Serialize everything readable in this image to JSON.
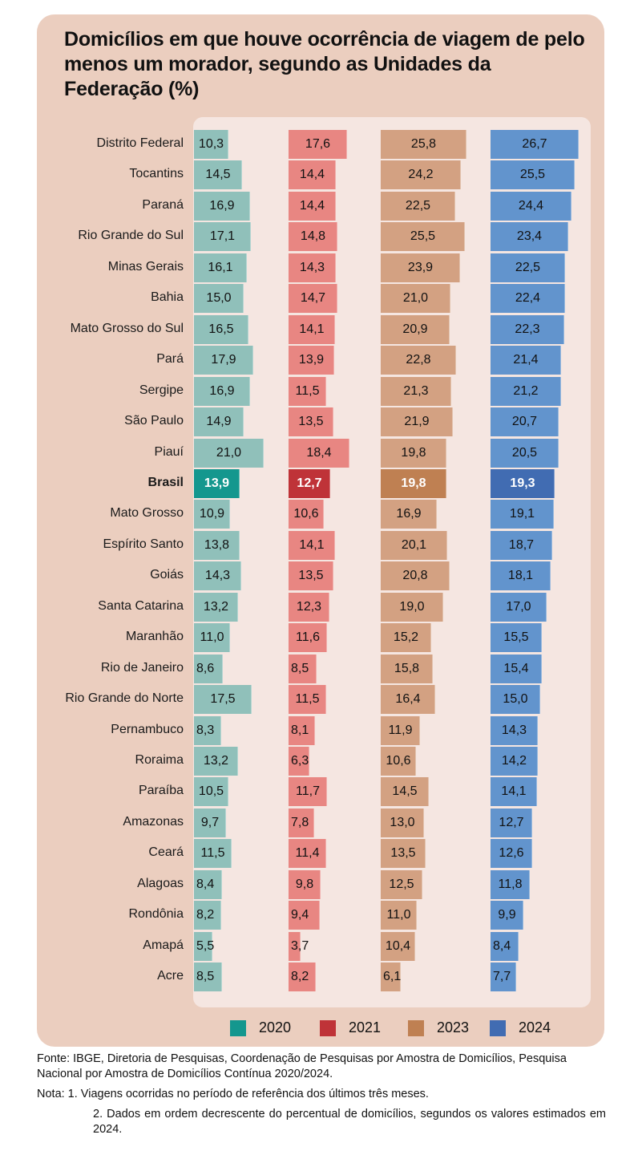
{
  "chart_data": {
    "type": "bar",
    "orientation": "horizontal",
    "title": "Domicílios em que houve ocorrência de viagem de pelo menos um morador, segundo as Unidades da Federação (%)",
    "xlabel": "",
    "ylabel": "",
    "unit": "%",
    "grid": false,
    "legend_position": "bottom",
    "categories": [
      "Distrito Federal",
      "Tocantins",
      "Paraná",
      "Rio Grande do Sul",
      "Minas Gerais",
      "Bahia",
      "Mato Grosso do Sul",
      "Pará",
      "Sergipe",
      "São Paulo",
      "Piauí",
      "Brasil",
      "Mato Grosso",
      "Espírito Santo",
      "Goiás",
      "Santa Catarina",
      "Maranhão",
      "Rio de Janeiro",
      "Rio Grande do Norte",
      "Pernambuco",
      "Roraima",
      "Paraíba",
      "Amazonas",
      "Ceará",
      "Alagoas",
      "Rondônia",
      "Amapá",
      "Acre"
    ],
    "highlight_category": "Brasil",
    "series": [
      {
        "name": "2020",
        "color": "#90c0ba",
        "highlight_color": "#14978e",
        "values": [
          10.3,
          14.5,
          16.9,
          17.1,
          16.1,
          15.0,
          16.5,
          17.9,
          16.9,
          14.9,
          21.0,
          13.9,
          10.9,
          13.8,
          14.3,
          13.2,
          11.0,
          8.6,
          17.5,
          8.3,
          13.2,
          10.5,
          9.7,
          11.5,
          8.4,
          8.2,
          5.5,
          8.5
        ],
        "labels": [
          "10,3",
          "14,5",
          "16,9",
          "17,1",
          "16,1",
          "15,0",
          "16,5",
          "17,9",
          "16,9",
          "14,9",
          "21,0",
          "13,9",
          "10,9",
          "13,8",
          "14,3",
          "13,2",
          "11,0",
          "8,6",
          "17,5",
          "8,3",
          "13,2",
          "10,5",
          "9,7",
          "11,5",
          "8,4",
          "8,2",
          "5,5",
          "8,5"
        ]
      },
      {
        "name": "2021",
        "color": "#e88682",
        "highlight_color": "#bf3338",
        "values": [
          17.6,
          14.4,
          14.4,
          14.8,
          14.3,
          14.7,
          14.1,
          13.9,
          11.5,
          13.5,
          18.4,
          12.7,
          10.6,
          14.1,
          13.5,
          12.3,
          11.6,
          8.5,
          11.5,
          8.1,
          6.3,
          11.7,
          7.8,
          11.4,
          9.8,
          9.4,
          3.7,
          8.2
        ],
        "labels": [
          "17,6",
          "14,4",
          "14,4",
          "14,8",
          "14,3",
          "14,7",
          "14,1",
          "13,9",
          "11,5",
          "13,5",
          "18,4",
          "12,7",
          "10,6",
          "14,1",
          "13,5",
          "12,3",
          "11,6",
          "8,5",
          "11,5",
          "8,1",
          "6,3",
          "11,7",
          "7,8",
          "11,4",
          "9,8",
          "9,4",
          "3,7",
          "8,2"
        ]
      },
      {
        "name": "2023",
        "color": "#d3a182",
        "highlight_color": "#bf8052",
        "values": [
          25.8,
          24.2,
          22.5,
          25.5,
          23.9,
          21.0,
          20.9,
          22.8,
          21.3,
          21.9,
          19.8,
          19.8,
          16.9,
          20.1,
          20.8,
          19.0,
          15.2,
          15.8,
          16.4,
          11.9,
          10.6,
          14.5,
          13.0,
          13.5,
          12.5,
          11.0,
          10.4,
          6.1
        ],
        "labels": [
          "25,8",
          "24,2",
          "22,5",
          "25,5",
          "23,9",
          "21,0",
          "20,9",
          "22,8",
          "21,3",
          "21,9",
          "19,8",
          "19,8",
          "16,9",
          "20,1",
          "20,8",
          "19,0",
          "15,2",
          "15,8",
          "16,4",
          "11,9",
          "10,6",
          "14,5",
          "13,0",
          "13,5",
          "12,5",
          "11,0",
          "10,4",
          "6,1"
        ]
      },
      {
        "name": "2024",
        "color": "#6294cd",
        "highlight_color": "#416cb2",
        "values": [
          26.7,
          25.5,
          24.4,
          23.4,
          22.5,
          22.4,
          22.3,
          21.4,
          21.2,
          20.7,
          20.5,
          19.3,
          19.1,
          18.7,
          18.1,
          17.0,
          15.5,
          15.4,
          15.0,
          14.3,
          14.2,
          14.1,
          12.7,
          12.6,
          11.8,
          9.9,
          8.4,
          7.7
        ],
        "labels": [
          "26,7",
          "25,5",
          "24,4",
          "23,4",
          "22,5",
          "22,4",
          "22,3",
          "21,4",
          "21,2",
          "20,7",
          "20,5",
          "19,3",
          "19,1",
          "18,7",
          "18,1",
          "17,0",
          "15,5",
          "15,4",
          "15,0",
          "14,3",
          "14,2",
          "14,1",
          "12,7",
          "12,6",
          "11,8",
          "9,9",
          "8,4",
          "7,7"
        ]
      }
    ]
  },
  "title": "Domicílios em que houve ocorrência de viagem de pelo menos um morador, segundo as Unidades da Federação (%)",
  "legend": [
    {
      "label": "2020",
      "color": "#14978e"
    },
    {
      "label": "2021",
      "color": "#bf3338"
    },
    {
      "label": "2023",
      "color": "#bf8052"
    },
    {
      "label": "2024",
      "color": "#416cb2"
    }
  ],
  "footer": {
    "source": "Fonte: IBGE, Diretoria de Pesquisas, Coordenação de Pesquisas por Amostra de Domicílios, Pesquisa Nacional por Amostra de Domicílios Contínua 2020/2024.",
    "note_1": "Nota: 1. Viagens ocorridas no período de referência dos últimos três meses.",
    "note_2": "2. Dados em ordem decrescente do percentual de domicílios, segundos os valores estimados em 2024."
  }
}
